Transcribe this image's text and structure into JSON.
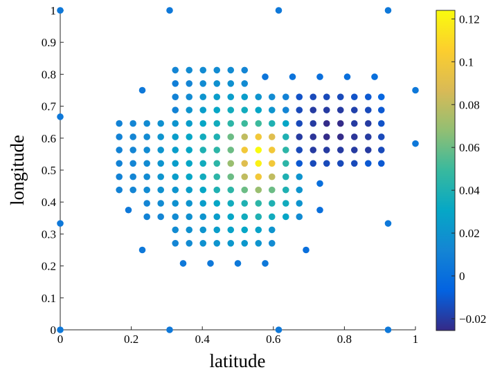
{
  "chart_data": {
    "type": "scatter",
    "xlabel": "latitude",
    "ylabel": "longitude",
    "xlim": [
      0,
      1
    ],
    "ylim": [
      0,
      1
    ],
    "xticks": [
      0,
      0.2,
      0.4,
      0.6,
      0.8,
      1
    ],
    "yticks": [
      0,
      0.1,
      0.2,
      0.3,
      0.4,
      0.5,
      0.6,
      0.7,
      0.8,
      0.9,
      1
    ],
    "clim": [
      -0.0255,
      0.124
    ],
    "cticks": [
      {
        "value": -0.02,
        "label": "−0.02"
      },
      0,
      0.02,
      0.04,
      0.06,
      0.08,
      0.1,
      0.12
    ],
    "colormap": [
      "#352a87",
      "#0363e1",
      "#1485d4",
      "#06a7c6",
      "#38b99e",
      "#92bf73",
      "#d9ba56",
      "#fcce2e",
      "#f9fb0e"
    ],
    "series": [
      {
        "x": [
          0.324,
          0.363,
          0.402,
          0.441,
          0.48,
          0.519,
          0.324,
          0.363,
          0.402,
          0.441,
          0.48,
          0.519,
          0.324,
          0.363,
          0.402,
          0.441,
          0.48,
          0.519,
          0.558,
          0.596,
          0.635,
          0.673,
          0.712,
          0.75,
          0.789,
          0.828,
          0.867,
          0.904,
          0.324,
          0.363,
          0.402,
          0.441,
          0.48,
          0.519,
          0.558,
          0.596,
          0.635,
          0.673,
          0.712,
          0.75,
          0.789,
          0.828,
          0.867,
          0.904,
          0.166,
          0.205,
          0.244,
          0.283,
          0.324,
          0.363,
          0.402,
          0.441,
          0.48,
          0.519,
          0.558,
          0.596,
          0.635,
          0.673,
          0.712,
          0.75,
          0.789,
          0.828,
          0.867,
          0.904,
          0.166,
          0.205,
          0.244,
          0.283,
          0.324,
          0.363,
          0.402,
          0.441,
          0.48,
          0.519,
          0.558,
          0.596,
          0.635,
          0.673,
          0.712,
          0.75,
          0.789,
          0.828,
          0.867,
          0.904,
          0.166,
          0.205,
          0.244,
          0.283,
          0.324,
          0.363,
          0.402,
          0.441,
          0.48,
          0.519,
          0.558,
          0.596,
          0.635,
          0.673,
          0.712,
          0.75,
          0.789,
          0.828,
          0.867,
          0.904,
          0.166,
          0.205,
          0.244,
          0.283,
          0.324,
          0.363,
          0.402,
          0.441,
          0.48,
          0.519,
          0.558,
          0.596,
          0.635,
          0.673,
          0.712,
          0.75,
          0.789,
          0.828,
          0.867,
          0.904,
          0.166,
          0.205,
          0.244,
          0.283,
          0.324,
          0.363,
          0.402,
          0.441,
          0.48,
          0.519,
          0.558,
          0.596,
          0.635,
          0.673,
          0.166,
          0.205,
          0.244,
          0.283,
          0.324,
          0.363,
          0.402,
          0.441,
          0.48,
          0.519,
          0.558,
          0.596,
          0.635,
          0.673,
          0.244,
          0.283,
          0.324,
          0.363,
          0.402,
          0.441,
          0.48,
          0.519,
          0.558,
          0.596,
          0.635,
          0.673,
          0.244,
          0.283,
          0.324,
          0.363,
          0.402,
          0.441,
          0.48,
          0.519,
          0.558,
          0.596,
          0.635,
          0.673,
          0.324,
          0.363,
          0.402,
          0.441,
          0.48,
          0.519,
          0.558,
          0.596,
          0.324,
          0.363,
          0.402,
          0.441,
          0.48,
          0.519,
          0.558,
          0.596,
          0,
          0.308,
          0.615,
          0.923,
          0.231,
          0,
          1,
          1,
          0,
          0.923,
          0,
          0.308,
          0.615,
          0.923,
          0.231,
          0.192,
          0.731,
          0.731,
          0.692,
          0.346,
          0.423,
          0.5,
          0.577,
          0.577,
          0.654,
          0.731,
          0.808,
          0.885
        ],
        "y": [
          0.813,
          0.813,
          0.813,
          0.813,
          0.813,
          0.813,
          0.771,
          0.771,
          0.771,
          0.771,
          0.771,
          0.771,
          0.729,
          0.729,
          0.729,
          0.729,
          0.729,
          0.729,
          0.729,
          0.729,
          0.729,
          0.729,
          0.729,
          0.729,
          0.729,
          0.729,
          0.729,
          0.729,
          0.688,
          0.688,
          0.688,
          0.688,
          0.688,
          0.688,
          0.688,
          0.688,
          0.688,
          0.688,
          0.688,
          0.688,
          0.688,
          0.688,
          0.688,
          0.688,
          0.646,
          0.646,
          0.646,
          0.646,
          0.646,
          0.646,
          0.646,
          0.646,
          0.646,
          0.646,
          0.646,
          0.646,
          0.646,
          0.646,
          0.646,
          0.646,
          0.646,
          0.646,
          0.646,
          0.646,
          0.604,
          0.604,
          0.604,
          0.604,
          0.604,
          0.604,
          0.604,
          0.604,
          0.604,
          0.604,
          0.604,
          0.604,
          0.604,
          0.604,
          0.604,
          0.604,
          0.604,
          0.604,
          0.604,
          0.604,
          0.563,
          0.563,
          0.563,
          0.563,
          0.563,
          0.563,
          0.563,
          0.563,
          0.563,
          0.563,
          0.563,
          0.563,
          0.563,
          0.563,
          0.563,
          0.563,
          0.563,
          0.563,
          0.563,
          0.563,
          0.521,
          0.521,
          0.521,
          0.521,
          0.521,
          0.521,
          0.521,
          0.521,
          0.521,
          0.521,
          0.521,
          0.521,
          0.521,
          0.521,
          0.521,
          0.521,
          0.521,
          0.521,
          0.521,
          0.521,
          0.479,
          0.479,
          0.479,
          0.479,
          0.479,
          0.479,
          0.479,
          0.479,
          0.479,
          0.479,
          0.479,
          0.479,
          0.479,
          0.479,
          0.438,
          0.438,
          0.438,
          0.438,
          0.438,
          0.438,
          0.438,
          0.438,
          0.438,
          0.438,
          0.438,
          0.438,
          0.438,
          0.438,
          0.396,
          0.396,
          0.396,
          0.396,
          0.396,
          0.396,
          0.396,
          0.396,
          0.396,
          0.396,
          0.396,
          0.396,
          0.354,
          0.354,
          0.354,
          0.354,
          0.354,
          0.354,
          0.354,
          0.354,
          0.354,
          0.354,
          0.354,
          0.354,
          0.313,
          0.313,
          0.313,
          0.313,
          0.313,
          0.313,
          0.313,
          0.313,
          0.271,
          0.271,
          0.271,
          0.271,
          0.271,
          0.271,
          0.271,
          0.271,
          1,
          1,
          1,
          1,
          0.75,
          0.667,
          0.75,
          0.583,
          0.333,
          0.333,
          0,
          0,
          0,
          0,
          0.25,
          0.375,
          0.458,
          0.375,
          0.25,
          0.208,
          0.208,
          0.208,
          0.208,
          0.792,
          0.792,
          0.792,
          0.792,
          0.792
        ],
        "c": [
          0.012,
          0.015,
          0.015,
          0.015,
          0.015,
          0.012,
          0.008,
          0.012,
          0.015,
          0.018,
          0.018,
          0.015,
          0.01,
          0.015,
          0.02,
          0.025,
          0.025,
          0.025,
          0.02,
          0.015,
          0.01,
          -0.012,
          -0.015,
          -0.015,
          -0.015,
          -0.012,
          -0.01,
          -0.005,
          0.01,
          0.02,
          0.025,
          0.03,
          0.035,
          0.035,
          0.03,
          0.02,
          0.012,
          -0.015,
          -0.02,
          -0.02,
          -0.02,
          -0.018,
          -0.015,
          -0.01,
          0.01,
          0.012,
          0.015,
          0.018,
          0.02,
          0.025,
          0.03,
          0.035,
          0.045,
          0.05,
          0.05,
          0.04,
          0.03,
          -0.015,
          -0.02,
          -0.025,
          -0.025,
          -0.02,
          -0.02,
          -0.012,
          0.01,
          0.012,
          0.015,
          0.02,
          0.025,
          0.03,
          0.035,
          0.04,
          0.06,
          0.08,
          0.1,
          0.09,
          0.04,
          -0.02,
          -0.022,
          -0.025,
          -0.025,
          -0.022,
          -0.02,
          -0.015,
          0.01,
          0.012,
          0.015,
          0.02,
          0.025,
          0.03,
          0.04,
          0.045,
          0.06,
          0.1,
          0.124,
          0.1,
          0.045,
          -0.015,
          -0.02,
          -0.02,
          -0.02,
          -0.02,
          -0.02,
          -0.015,
          0.01,
          0.012,
          0.015,
          0.02,
          0.025,
          0.03,
          0.035,
          0.045,
          0.07,
          0.09,
          0.12,
          0.1,
          0.045,
          -0.01,
          -0.015,
          -0.015,
          -0.015,
          -0.015,
          -0.01,
          -0.01,
          0.01,
          0.012,
          0.015,
          0.02,
          0.025,
          0.03,
          0.035,
          0.045,
          0.06,
          0.08,
          0.1,
          0.08,
          0.04,
          0.02,
          0.01,
          0.012,
          0.015,
          0.018,
          0.02,
          0.025,
          0.03,
          0.04,
          0.045,
          0.06,
          0.07,
          0.06,
          0.04,
          0.02,
          0.012,
          0.015,
          0.018,
          0.02,
          0.025,
          0.03,
          0.035,
          0.04,
          0.045,
          0.04,
          0.035,
          0.02,
          0.01,
          0.012,
          0.015,
          0.018,
          0.02,
          0.025,
          0.03,
          0.035,
          0.04,
          0.035,
          0.03,
          0.015,
          0.015,
          0.018,
          0.02,
          0.025,
          0.028,
          0.03,
          0.028,
          0.02,
          0.012,
          0.015,
          0.018,
          0.02,
          0.022,
          0.022,
          0.02,
          0.015,
          0.005,
          0.005,
          0.005,
          0.005,
          0.005,
          0.005,
          0.005,
          0.005,
          0.005,
          0.005,
          0.005,
          0.005,
          0.005,
          0.005,
          0.005,
          0.005,
          0,
          0,
          0,
          0.005,
          0.005,
          0.005,
          0.005,
          0.003,
          0.002,
          0,
          0,
          0
        ]
      }
    ]
  }
}
